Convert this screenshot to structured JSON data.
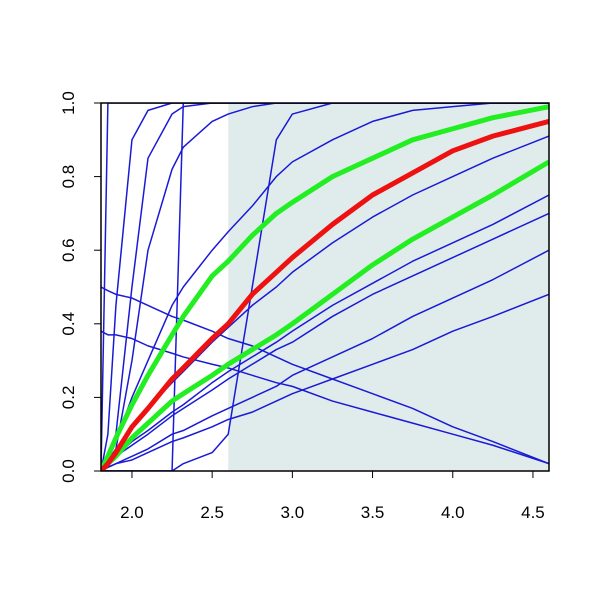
{
  "chart_data": {
    "type": "line",
    "x": [
      1.807,
      1.85,
      1.9,
      2.0,
      2.1,
      2.25,
      2.32,
      2.5,
      2.6,
      2.75,
      2.9,
      3.0,
      3.25,
      3.5,
      3.75,
      4.0,
      4.25,
      4.6
    ],
    "xlim": [
      1.807,
      4.6
    ],
    "ylim": [
      0,
      1
    ],
    "xticks": [
      {
        "value": 2,
        "label": "2.0"
      },
      {
        "value": 2.5,
        "label": "2.5"
      },
      {
        "value": 3,
        "label": "3.0"
      },
      {
        "value": 3.5,
        "label": "3.5"
      },
      {
        "value": 4,
        "label": "4.0"
      },
      {
        "value": 4.5,
        "label": "4.5"
      }
    ],
    "yticks": [
      {
        "value": 0,
        "label": "0.0"
      },
      {
        "value": 0.2,
        "label": "0.2"
      },
      {
        "value": 0.4,
        "label": "0.4"
      },
      {
        "value": 0.6,
        "label": "0.6"
      },
      {
        "value": 0.8,
        "label": "0.8"
      },
      {
        "value": 1,
        "label": "1.0"
      }
    ],
    "shaded_region": {
      "xlim": [
        2.6,
        4.6
      ],
      "color": "#e0ecec"
    },
    "series": [
      {
        "color": "#1a1ad6",
        "line_width": 1.5,
        "values": [
          0,
          1,
          1,
          1,
          1,
          1,
          1,
          1,
          1,
          1,
          1,
          1,
          1,
          1,
          1,
          1,
          1,
          1
        ]
      },
      {
        "color": "#1a1ad6",
        "line_width": 1.5,
        "values": [
          0,
          0.1,
          0.45,
          0.9,
          0.98,
          1,
          1,
          1,
          1,
          1,
          1,
          1,
          1,
          1,
          1,
          1,
          1,
          1
        ]
      },
      {
        "color": "#1a1ad6",
        "line_width": 1.5,
        "values": [
          0,
          0.02,
          0.1,
          0.5,
          0.85,
          0.97,
          0.99,
          1,
          1,
          1,
          1,
          1,
          1,
          1,
          1,
          1,
          1,
          1
        ]
      },
      {
        "color": "#1a1ad6",
        "line_width": 1.5,
        "values": [
          0,
          0.02,
          0.06,
          0.3,
          0.6,
          0.82,
          0.88,
          0.95,
          0.97,
          0.99,
          1,
          1,
          1,
          1,
          1,
          1,
          1,
          1
        ]
      },
      {
        "color": "#1a1ad6",
        "line_width": 1.5,
        "values": [
          0,
          0,
          0,
          0,
          0,
          0,
          1,
          1,
          1,
          1,
          1,
          1,
          1,
          1,
          1,
          1,
          1,
          1
        ]
      },
      {
        "color": "#1a1ad6",
        "line_width": 1.5,
        "values": [
          0,
          0,
          0,
          0,
          0,
          0,
          0.02,
          0.05,
          0.1,
          0.5,
          0.9,
          0.97,
          1,
          1,
          1,
          1,
          1,
          1
        ]
      },
      {
        "color": "#1a1ad6",
        "line_width": 1.5,
        "values": [
          0,
          0.03,
          0.08,
          0.2,
          0.3,
          0.45,
          0.5,
          0.6,
          0.65,
          0.72,
          0.8,
          0.84,
          0.9,
          0.95,
          0.98,
          0.99,
          1,
          1
        ]
      },
      {
        "color": "#1a1ad6",
        "line_width": 1.5,
        "values": [
          0,
          0.01,
          0.02,
          0.03,
          0.05,
          0.08,
          0.09,
          0.12,
          0.14,
          0.16,
          0.19,
          0.21,
          0.25,
          0.29,
          0.33,
          0.38,
          0.42,
          0.48
        ]
      },
      {
        "color": "#1a1ad6",
        "line_width": 1.5,
        "values": [
          0,
          0.01,
          0.02,
          0.04,
          0.06,
          0.1,
          0.11,
          0.15,
          0.17,
          0.2,
          0.23,
          0.26,
          0.31,
          0.36,
          0.42,
          0.47,
          0.52,
          0.6
        ]
      },
      {
        "color": "#1a1ad6",
        "line_width": 1.5,
        "values": [
          0,
          0.02,
          0.04,
          0.07,
          0.1,
          0.15,
          0.17,
          0.22,
          0.25,
          0.29,
          0.33,
          0.35,
          0.42,
          0.48,
          0.53,
          0.58,
          0.63,
          0.7
        ]
      },
      {
        "color": "#1a1ad6",
        "line_width": 1.5,
        "values": [
          0,
          0.02,
          0.04,
          0.08,
          0.11,
          0.16,
          0.18,
          0.24,
          0.27,
          0.31,
          0.35,
          0.38,
          0.45,
          0.51,
          0.57,
          0.62,
          0.67,
          0.75
        ]
      },
      {
        "color": "#1a1ad6",
        "line_width": 1.5,
        "values": [
          0,
          0.03,
          0.06,
          0.12,
          0.17,
          0.24,
          0.27,
          0.35,
          0.39,
          0.45,
          0.5,
          0.54,
          0.62,
          0.69,
          0.75,
          0.8,
          0.85,
          0.91
        ]
      },
      {
        "color": "#1a1ad6",
        "line_width": 1.5,
        "values": [
          0.5,
          0.49,
          0.48,
          0.47,
          0.45,
          0.42,
          0.41,
          0.38,
          0.36,
          0.34,
          0.31,
          0.29,
          0.25,
          0.21,
          0.17,
          0.12,
          0.08,
          0.02
        ]
      },
      {
        "color": "#1a1ad6",
        "line_width": 1.5,
        "values": [
          0.38,
          0.37,
          0.37,
          0.36,
          0.34,
          0.32,
          0.31,
          0.29,
          0.28,
          0.26,
          0.24,
          0.23,
          0.19,
          0.16,
          0.13,
          0.1,
          0.07,
          0.02
        ]
      },
      {
        "color": "#22ee22",
        "line_width": 5,
        "values": [
          0,
          0.04,
          0.09,
          0.18,
          0.26,
          0.37,
          0.42,
          0.53,
          0.57,
          0.64,
          0.7,
          0.73,
          0.8,
          0.85,
          0.9,
          0.93,
          0.96,
          0.99
        ]
      },
      {
        "color": "#22ee22",
        "line_width": 5,
        "values": [
          0,
          0.02,
          0.04,
          0.09,
          0.13,
          0.19,
          0.21,
          0.26,
          0.29,
          0.33,
          0.37,
          0.4,
          0.48,
          0.56,
          0.63,
          0.69,
          0.75,
          0.84
        ]
      },
      {
        "color": "#ee1111",
        "line_width": 5,
        "values": [
          0,
          0.02,
          0.05,
          0.12,
          0.17,
          0.25,
          0.28,
          0.36,
          0.4,
          0.48,
          0.54,
          0.58,
          0.67,
          0.75,
          0.81,
          0.87,
          0.91,
          0.95
        ]
      }
    ]
  }
}
